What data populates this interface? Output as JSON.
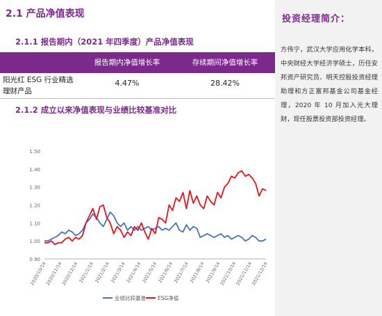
{
  "section": {
    "title": "2.1 产品净值表现",
    "sub1": "2.1.1  报告期内（2021 年四季度）产品净值表现",
    "sub2": "2.1.2 成立以来净值表现与业绩比较基准对比"
  },
  "table": {
    "headers": [
      "报告期内净值增长率",
      "存续期间净值增长率"
    ],
    "row": {
      "name": "阳光红 ESG 行业精选理财产品",
      "period_growth": "4.47%",
      "total_growth": "28.42%"
    }
  },
  "manager": {
    "title": "投资经理简介：",
    "bio": "方伟宁，武汉大学应用化学本科，中央财经大学经济学硕士，历任安邦资产研究员、明天控股投资经理助理和方正富邦基金公司基金经理，2020 年 10 月加入光大理财，现任股票投资部投资经理。"
  },
  "colors": {
    "accent": "#7b2a8c",
    "benchmark": "#4472c4",
    "esg": "#e8121b"
  },
  "chart_data": {
    "type": "line",
    "x_ticks": [
      "2020/10/14",
      "2020/11/14",
      "2020/12/14",
      "2021/1/14",
      "2021/2/14",
      "2021/3/14",
      "2021/4/14",
      "2021/5/14",
      "2021/6/14",
      "2021/7/14",
      "2021/8/14",
      "2021/9/14",
      "2021/10/14",
      "2021/11/14",
      "2021/12/14"
    ],
    "y_ticks": [
      "1.50",
      "1.40",
      "1.30",
      "1.20",
      "1.10",
      "1.00",
      "0.90"
    ],
    "ylim": [
      0.9,
      1.5
    ],
    "legend_position": "bottom",
    "series": [
      {
        "name": "业绩比较基准",
        "values": [
          1.0,
          1.0,
          1.01,
          1.02,
          1.03,
          1.05,
          1.04,
          1.06,
          1.05,
          1.03,
          1.04,
          1.06,
          1.1,
          1.12,
          1.15,
          1.13,
          1.1,
          1.08,
          1.12,
          1.16,
          1.14,
          1.1,
          1.08,
          1.1,
          1.06,
          1.08,
          1.06,
          1.08,
          1.06,
          1.07,
          1.08,
          1.06,
          1.07,
          1.08,
          1.06,
          1.07,
          1.06,
          1.08,
          1.1,
          1.06,
          1.05,
          1.09,
          1.06,
          1.08,
          1.07,
          1.02,
          1.03,
          1.04,
          1.03,
          1.02,
          1.03,
          1.04,
          1.02,
          1.03,
          1.01,
          1.02,
          1.03,
          1.02,
          1.0,
          1.01,
          1.03,
          1.02,
          1.0,
          1.0,
          1.01
        ]
      },
      {
        "name": "ESG净值",
        "values": [
          0.99,
          0.99,
          1.0,
          0.98,
          0.99,
          0.99,
          1.01,
          1.02,
          1.0,
          1.02,
          1.01,
          1.03,
          1.1,
          1.14,
          1.18,
          1.12,
          1.19,
          1.2,
          1.13,
          1.1,
          1.04,
          1.08,
          1.06,
          1.02,
          1.05,
          1.03,
          1.08,
          1.06,
          1.1,
          1.05,
          1.01,
          1.07,
          1.04,
          1.13,
          1.12,
          1.1,
          1.2,
          1.17,
          1.24,
          1.22,
          1.27,
          1.18,
          1.28,
          1.21,
          1.25,
          1.2,
          1.18,
          1.25,
          1.22,
          1.2,
          1.27,
          1.24,
          1.3,
          1.32,
          1.36,
          1.35,
          1.38,
          1.39,
          1.36,
          1.37,
          1.35,
          1.32,
          1.25,
          1.29,
          1.28
        ]
      }
    ]
  }
}
